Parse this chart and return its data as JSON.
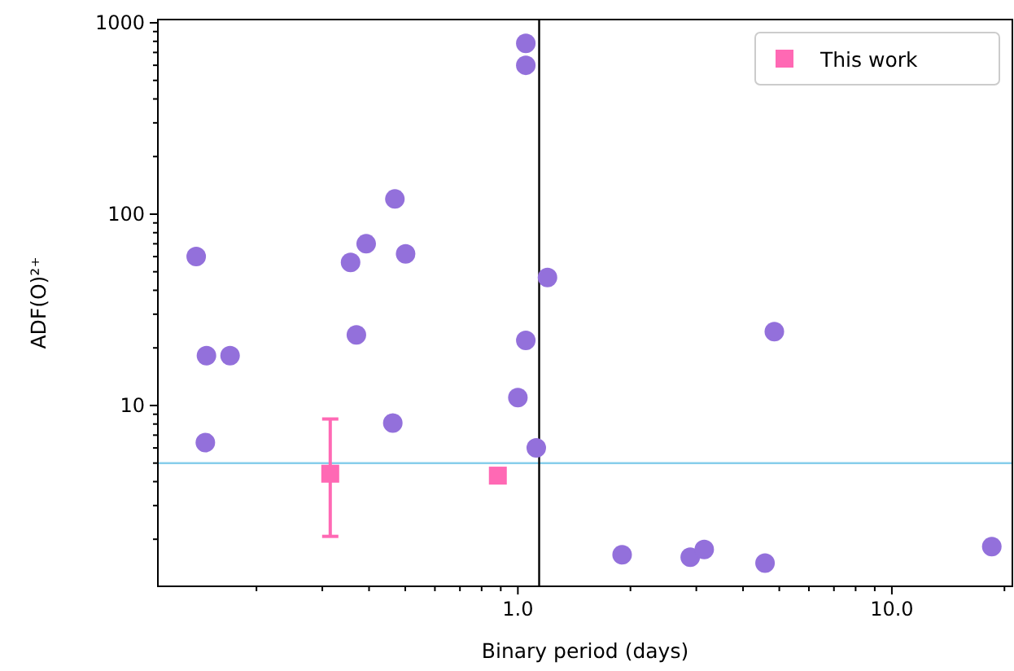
{
  "chart_data": {
    "type": "scatter",
    "xlabel": "Binary period (days)",
    "ylabel": "ADF(O)²⁺",
    "log": "xy",
    "legend": "top right",
    "marker": "circle",
    "xlim": [
      0.109,
      21
    ],
    "ylim": [
      1.135,
      1040
    ],
    "xticks": [
      {
        "value": 0.2,
        "label": null
      },
      {
        "value": 0.3,
        "label": null
      },
      {
        "value": 0.4,
        "label": null
      },
      {
        "value": 0.5,
        "label": null
      },
      {
        "value": 0.6,
        "label": null
      },
      {
        "value": 0.7,
        "label": null
      },
      {
        "value": 0.8,
        "label": null
      },
      {
        "value": 0.9,
        "label": null
      },
      {
        "value": 1,
        "label": "1.0"
      },
      {
        "value": 2,
        "label": null
      },
      {
        "value": 3,
        "label": null
      },
      {
        "value": 4,
        "label": null
      },
      {
        "value": 5,
        "label": null
      },
      {
        "value": 6,
        "label": null
      },
      {
        "value": 7,
        "label": null
      },
      {
        "value": 8,
        "label": null
      },
      {
        "value": 9,
        "label": null
      },
      {
        "value": 10,
        "label": "10.0"
      },
      {
        "value": 20,
        "label": null
      }
    ],
    "yticks": [
      {
        "value": 2,
        "label": null
      },
      {
        "value": 3,
        "label": null
      },
      {
        "value": 4,
        "label": null
      },
      {
        "value": 5,
        "label": null
      },
      {
        "value": 6,
        "label": null
      },
      {
        "value": 7,
        "label": null
      },
      {
        "value": 8,
        "label": null
      },
      {
        "value": 9,
        "label": null
      },
      10,
      {
        "value": 20,
        "label": null
      },
      {
        "value": 30,
        "label": null
      },
      {
        "value": 40,
        "label": null
      },
      {
        "value": 50,
        "label": null
      },
      {
        "value": 60,
        "label": null
      },
      {
        "value": 70,
        "label": null
      },
      {
        "value": 80,
        "label": null
      },
      {
        "value": 90,
        "label": null
      },
      100,
      {
        "value": 200,
        "label": null
      },
      {
        "value": 300,
        "label": null
      },
      {
        "value": 400,
        "label": null
      },
      {
        "value": 500,
        "label": null
      },
      {
        "value": 600,
        "label": null
      },
      {
        "value": 700,
        "label": null
      },
      {
        "value": 800,
        "label": null
      },
      {
        "value": 900,
        "label": null
      },
      1000
    ],
    "ref_lines": [
      {
        "axis": "y",
        "value": 5,
        "color": "#87ceeb"
      },
      {
        "axis": "x",
        "value": 1.14,
        "color": "#000000"
      }
    ],
    "series": [
      {
        "color": "#9370db",
        "x": [
          0.138,
          0.147,
          0.17,
          0.146,
          0.357,
          0.393,
          0.469,
          0.501,
          0.37,
          0.463,
          1.05,
          1.05,
          1.05,
          1.0,
          1.12,
          1.2,
          1.9,
          2.89,
          3.15,
          4.58,
          4.85,
          18.5
        ],
        "values": [
          60,
          18.2,
          18.2,
          6.4,
          56,
          70,
          120,
          62,
          23.4,
          8.1,
          780,
          600,
          21.9,
          11,
          6.0,
          46.7,
          1.66,
          1.61,
          1.77,
          1.5,
          24.3,
          1.83
        ]
      },
      {
        "name": "This work",
        "color": "#ff69b4",
        "marker": "square",
        "x": [
          0.315,
          0.884
        ],
        "values": [
          4.4,
          4.3
        ],
        "errors": [
          [
            2.07,
            8.5
          ],
          null
        ]
      }
    ]
  }
}
